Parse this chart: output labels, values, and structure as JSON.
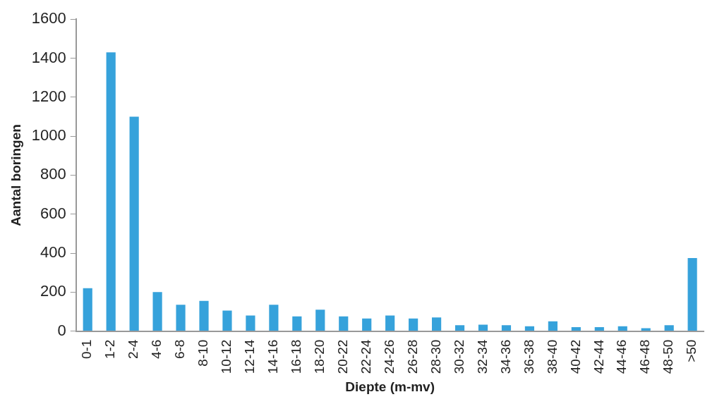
{
  "chart_data": {
    "type": "bar",
    "xlabel": "Diepte (m-mv)",
    "ylabel": "Aantal boringen",
    "categories": [
      "0-1",
      "1-2",
      "2-4",
      "4-6",
      "6-8",
      "8-10",
      "10-12",
      "12-14",
      "14-16",
      "16-18",
      "18-20",
      "20-22",
      "22-24",
      "24-26",
      "26-28",
      "28-30",
      "30-32",
      "32-34",
      "34-36",
      "36-38",
      "38-40",
      "40-42",
      "42-44",
      "44-46",
      "46-48",
      "48-50",
      ">50"
    ],
    "values": [
      220,
      1430,
      1100,
      200,
      135,
      155,
      105,
      80,
      135,
      75,
      110,
      75,
      65,
      80,
      65,
      70,
      30,
      33,
      30,
      25,
      50,
      20,
      20,
      25,
      15,
      30,
      375
    ],
    "color": "#36a2db",
    "ylim": [
      0,
      1600
    ],
    "yticks": [
      0,
      200,
      400,
      600,
      800,
      1000,
      1200,
      1400,
      1600
    ],
    "grid": false,
    "legend": false
  }
}
